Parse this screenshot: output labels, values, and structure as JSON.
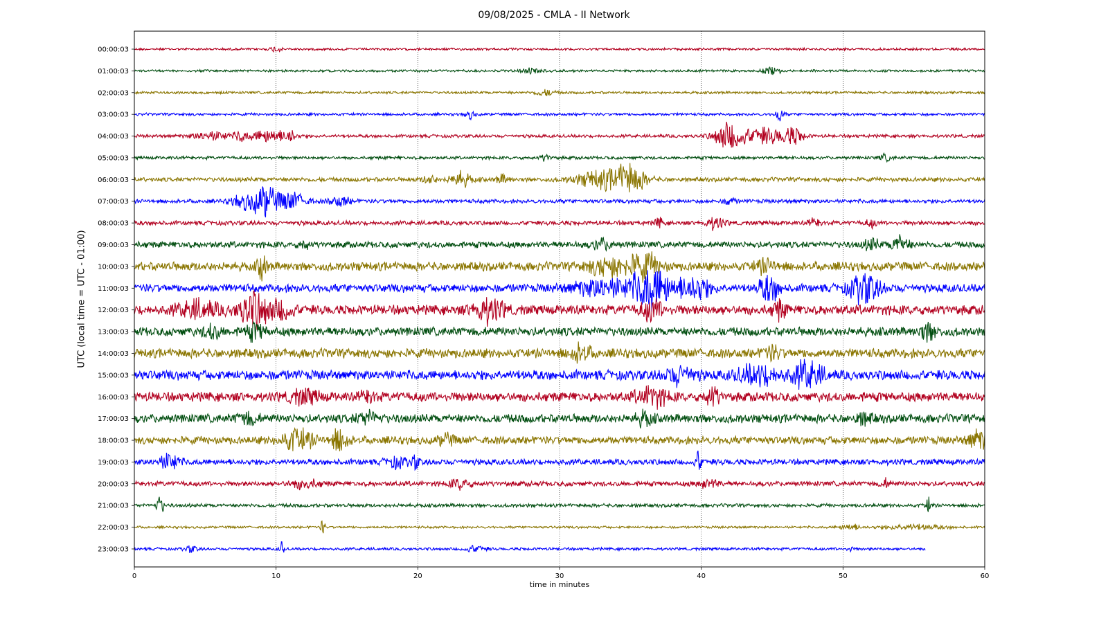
{
  "chart_data": {
    "type": "line",
    "title": "09/08/2025 - CMLA - II Network",
    "xlabel": "time in minutes",
    "ylabel": "UTC (local time = UTC - 01:00)",
    "xlim": [
      0,
      60
    ],
    "xticks": [
      "0",
      "10",
      "20",
      "30",
      "40",
      "50",
      "60"
    ],
    "grid": "vertical dotted lines at 10-minute intervals",
    "colors": [
      "#b2001f",
      "#004d0f",
      "#8a7500",
      "#0000ff"
    ],
    "series": [
      {
        "name": "00:00:03",
        "color": "#b2001f",
        "noise": 0.12,
        "events": [
          [
            10,
            0.3,
            0.5
          ]
        ],
        "end": 60
      },
      {
        "name": "01:00:03",
        "color": "#004d0f",
        "noise": 0.12,
        "events": [
          [
            28,
            0.3,
            1
          ],
          [
            45,
            0.3,
            1
          ]
        ],
        "end": 60
      },
      {
        "name": "02:00:03",
        "color": "#8a7500",
        "noise": 0.13,
        "events": [
          [
            29,
            0.3,
            1
          ]
        ],
        "end": 60
      },
      {
        "name": "03:00:03",
        "color": "#0000ff",
        "noise": 0.14,
        "events": [
          [
            23.7,
            0.4,
            0.5
          ],
          [
            45.5,
            0.7,
            0.4
          ]
        ],
        "end": 60
      },
      {
        "name": "04:00:03",
        "color": "#b2001f",
        "noise": 0.16,
        "events": [
          [
            5.5,
            0.4,
            2
          ],
          [
            7.5,
            0.5,
            0.5
          ],
          [
            9.5,
            0.6,
            2
          ],
          [
            11,
            0.7,
            0.4
          ],
          [
            42,
            1.4,
            1.5
          ],
          [
            44.5,
            0.8,
            2
          ],
          [
            46.5,
            0.8,
            1
          ]
        ],
        "end": 60
      },
      {
        "name": "05:00:03",
        "color": "#004d0f",
        "noise": 0.16,
        "events": [
          [
            29,
            0.3,
            0.5
          ],
          [
            53,
            0.3,
            0.6
          ]
        ],
        "end": 60
      },
      {
        "name": "06:00:03",
        "color": "#8a7500",
        "noise": 0.22,
        "events": [
          [
            20.8,
            0.5,
            0.6
          ],
          [
            23,
            0.7,
            1
          ],
          [
            26,
            0.4,
            0.6
          ],
          [
            33,
            0.9,
            2.5
          ],
          [
            35,
            1.3,
            1.5
          ]
        ],
        "end": 60
      },
      {
        "name": "07:00:03",
        "color": "#0000ff",
        "noise": 0.2,
        "events": [
          [
            8,
            0.8,
            1.5
          ],
          [
            9.3,
            1.4,
            1
          ],
          [
            11,
            0.9,
            1.5
          ],
          [
            14.5,
            0.5,
            1
          ],
          [
            42,
            0.4,
            0.5
          ]
        ],
        "end": 60
      },
      {
        "name": "08:00:03",
        "color": "#b2001f",
        "noise": 0.22,
        "events": [
          [
            37,
            0.5,
            0.4
          ],
          [
            41,
            0.6,
            0.8
          ],
          [
            48,
            0.4,
            0.6
          ],
          [
            52,
            0.4,
            0.5
          ]
        ],
        "end": 60
      },
      {
        "name": "09:00:03",
        "color": "#004d0f",
        "noise": 0.32,
        "events": [
          [
            12,
            0.4,
            0.5
          ],
          [
            33,
            0.5,
            1
          ],
          [
            52,
            0.5,
            0.8
          ],
          [
            54,
            0.9,
            0.8
          ]
        ],
        "end": 60
      },
      {
        "name": "10:00:03",
        "color": "#8a7500",
        "noise": 0.45,
        "events": [
          [
            9,
            1.4,
            0.4
          ],
          [
            33.5,
            0.9,
            2
          ],
          [
            36,
            1.2,
            1.5
          ],
          [
            44.5,
            0.6,
            1
          ]
        ],
        "end": 60
      },
      {
        "name": "11:00:03",
        "color": "#0000ff",
        "noise": 0.42,
        "events": [
          [
            33,
            0.8,
            3
          ],
          [
            36.5,
            2.0,
            2
          ],
          [
            39.5,
            1.2,
            1.5
          ],
          [
            44.8,
            1.3,
            1
          ],
          [
            51.5,
            1.4,
            1.5
          ]
        ],
        "end": 60
      },
      {
        "name": "12:00:03",
        "color": "#b2001f",
        "noise": 0.5,
        "events": [
          [
            4.5,
            0.8,
            2
          ],
          [
            8.5,
            1.8,
            1.5
          ],
          [
            10.5,
            0.9,
            1
          ],
          [
            25,
            1.1,
            1.5
          ],
          [
            36.5,
            1.0,
            1
          ],
          [
            45.5,
            0.9,
            0.6
          ]
        ],
        "end": 60
      },
      {
        "name": "13:00:03",
        "color": "#004d0f",
        "noise": 0.45,
        "events": [
          [
            5.5,
            0.7,
            0.8
          ],
          [
            8.5,
            0.7,
            1
          ],
          [
            56,
            0.8,
            0.8
          ]
        ],
        "end": 60
      },
      {
        "name": "14:00:03",
        "color": "#8a7500",
        "noise": 0.48,
        "events": [
          [
            31.5,
            0.8,
            1
          ],
          [
            45,
            0.6,
            0.8
          ]
        ],
        "end": 60
      },
      {
        "name": "15:00:03",
        "color": "#0000ff",
        "noise": 0.5,
        "events": [
          [
            38.5,
            0.8,
            1.5
          ],
          [
            44,
            0.9,
            2
          ],
          [
            47.5,
            1.3,
            1.5
          ]
        ],
        "end": 60
      },
      {
        "name": "16:00:03",
        "color": "#b2001f",
        "noise": 0.48,
        "events": [
          [
            12,
            0.6,
            1.5
          ],
          [
            16.5,
            0.5,
            0.8
          ],
          [
            36.5,
            0.9,
            1.5
          ],
          [
            40.8,
            1.0,
            0.6
          ]
        ],
        "end": 60
      },
      {
        "name": "17:00:03",
        "color": "#004d0f",
        "noise": 0.45,
        "events": [
          [
            8,
            0.5,
            1
          ],
          [
            16.5,
            0.6,
            1
          ],
          [
            36,
            0.6,
            0.8
          ],
          [
            51.5,
            0.5,
            0.8
          ]
        ],
        "end": 60
      },
      {
        "name": "18:00:03",
        "color": "#8a7500",
        "noise": 0.4,
        "events": [
          [
            11.5,
            1.1,
            1.5
          ],
          [
            14.5,
            1.1,
            0.8
          ],
          [
            22,
            0.5,
            0.8
          ],
          [
            59.5,
            0.9,
            1
          ]
        ],
        "end": 60
      },
      {
        "name": "19:00:03",
        "color": "#0000ff",
        "noise": 0.3,
        "events": [
          [
            2.5,
            0.8,
            1
          ],
          [
            18.5,
            0.5,
            1
          ],
          [
            19.8,
            0.6,
            0.4
          ],
          [
            39.8,
            1.1,
            0.3
          ]
        ],
        "end": 60
      },
      {
        "name": "20:00:03",
        "color": "#b2001f",
        "noise": 0.25,
        "events": [
          [
            12,
            0.4,
            1.5
          ],
          [
            23,
            0.5,
            1
          ],
          [
            40.5,
            0.4,
            1
          ],
          [
            53,
            0.4,
            0.5
          ]
        ],
        "end": 60
      },
      {
        "name": "21:00:03",
        "color": "#004d0f",
        "noise": 0.18,
        "events": [
          [
            1.8,
            0.9,
            0.4
          ],
          [
            56,
            0.8,
            0.3
          ]
        ],
        "end": 60
      },
      {
        "name": "22:00:03",
        "color": "#8a7500",
        "noise": 0.12,
        "events": [
          [
            13.3,
            0.9,
            0.2
          ],
          [
            50.5,
            0.3,
            1
          ],
          [
            55,
            0.25,
            3
          ]
        ],
        "end": 60
      },
      {
        "name": "23:00:03",
        "color": "#0000ff",
        "noise": 0.14,
        "events": [
          [
            4,
            0.3,
            0.6
          ],
          [
            10.4,
            0.8,
            0.2
          ],
          [
            24,
            0.3,
            1
          ],
          [
            50.5,
            0.4,
            0.2
          ]
        ],
        "end": 55.8
      }
    ]
  }
}
